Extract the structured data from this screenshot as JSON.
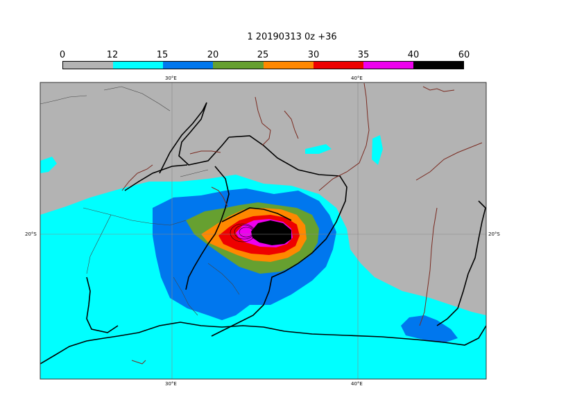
{
  "title": "1 20190313 0z +36",
  "legend": {
    "labels": [
      "0",
      "12",
      "15",
      "20",
      "25",
      "30",
      "35",
      "40",
      "60"
    ],
    "colors": [
      "#b3b3b3",
      "#00ffff",
      "#0077ee",
      "#66a030",
      "#ff8800",
      "#ee0000",
      "#ee00ee",
      "#000000"
    ]
  },
  "axes": {
    "lon_top": [
      "30°E",
      "40°E"
    ],
    "lon_bottom": [
      "30°E",
      "40°E"
    ],
    "lat_left": "20°S",
    "lat_right": "20°S"
  },
  "colors": {
    "land_background": "#b3b3b3",
    "coastline": "#000000",
    "borders": "#7a2a20",
    "grid": "#888888"
  }
}
